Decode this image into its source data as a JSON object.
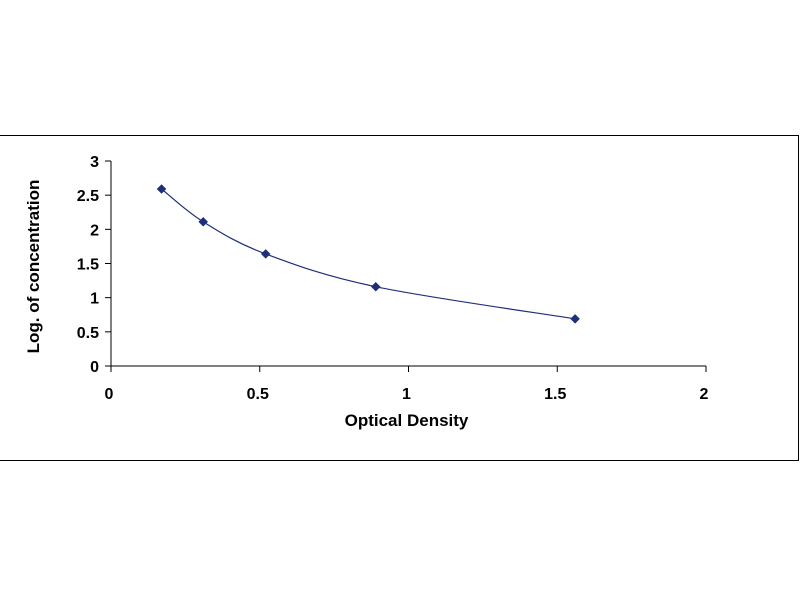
{
  "chart_data": {
    "type": "scatter",
    "title": "",
    "xlabel": "Optical Density",
    "ylabel": "Log. of concentration",
    "xlim": [
      0,
      2
    ],
    "ylim": [
      0,
      3
    ],
    "x_ticks": [
      "0",
      "0.5",
      "1",
      "1.5",
      "2"
    ],
    "y_ticks": [
      "0",
      "0.5",
      "1",
      "1.5",
      "2",
      "2.5",
      "3"
    ],
    "grid": false,
    "legend": "none",
    "trendline": "smooth curve",
    "series": [
      {
        "x": [
          0.17,
          0.31,
          0.52,
          0.89,
          1.56
        ],
        "y": [
          2.59,
          2.11,
          1.64,
          1.16,
          0.69
        ]
      }
    ],
    "colors": {
      "marker": "#1f2f7a",
      "line": "#1f2f7a",
      "axis": "#000000"
    }
  }
}
